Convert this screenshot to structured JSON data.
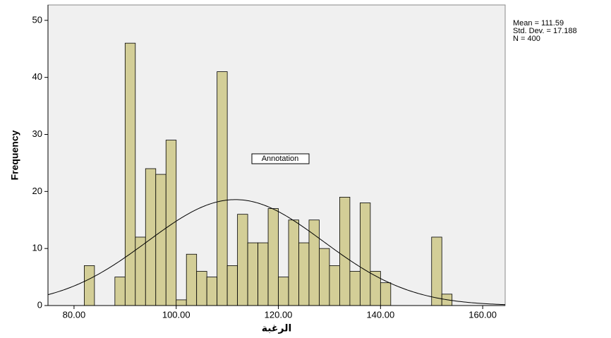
{
  "chart_data": {
    "type": "histogram",
    "x_label": "الرغبة",
    "y_label": "Frequency",
    "annotation": "Annotation",
    "stats_labels": [
      "Mean = 111.59",
      "Std. Dev. = 17.188",
      "N = 400"
    ],
    "normal_curve": {
      "mean": 111.59,
      "std_dev": 17.188,
      "n": 400
    },
    "bins": [
      82,
      84,
      86,
      88,
      90,
      92,
      94,
      96,
      98,
      100,
      102,
      104,
      106,
      108,
      110,
      112,
      114,
      116,
      118,
      120,
      122,
      124,
      126,
      128,
      130,
      132,
      134,
      136,
      138,
      140,
      142,
      144,
      146,
      148,
      150,
      152,
      154
    ],
    "counts": [
      7,
      0,
      0,
      5,
      46,
      12,
      24,
      23,
      29,
      1,
      9,
      6,
      5,
      41,
      7,
      16,
      11,
      11,
      17,
      5,
      15,
      11,
      15,
      10,
      7,
      19,
      6,
      18,
      6,
      4,
      0,
      0,
      0,
      0,
      12,
      2
    ],
    "color": "#d3ce97",
    "xlim": [
      74.9,
      164.4
    ],
    "xticks": [
      {
        "value": 80,
        "label": "80.00"
      },
      {
        "value": 100,
        "label": "100.00"
      },
      {
        "value": 120,
        "label": "120.00"
      },
      {
        "value": 140,
        "label": "140.00"
      },
      {
        "value": 160,
        "label": "160.00"
      }
    ],
    "ylim": [
      0,
      52.7
    ],
    "yticks": [
      0,
      10,
      20,
      30,
      40,
      50
    ]
  }
}
